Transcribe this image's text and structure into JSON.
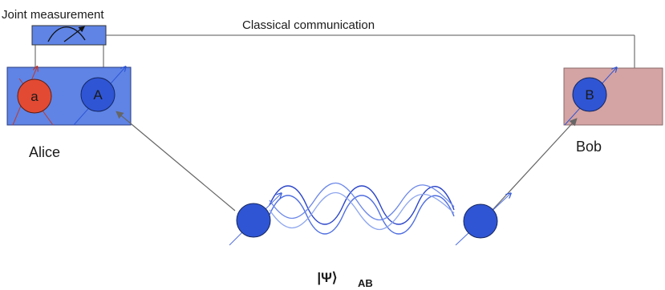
{
  "labels": {
    "joint_measurement": "Joint measurement",
    "classical_communication": "Classical communication",
    "alice": "Alice",
    "bob": "Bob",
    "particle_a": "a",
    "particle_A": "A",
    "particle_B": "B",
    "state_ket": "|Ψ⟩",
    "state_subscript": "AB"
  },
  "colors": {
    "alice_box": "#5f84e6",
    "bob_box": "#d4a3a3",
    "meter_box": "#5f84e6",
    "particle_blue": "#2f55d4",
    "particle_red": "#e24a33",
    "wave_dark": "#2a44c8",
    "wave_mid": "#4f6ee0",
    "wave_light": "#8ea6ee",
    "line": "#555555"
  },
  "icons": {
    "meter": "meter-needle-icon"
  }
}
